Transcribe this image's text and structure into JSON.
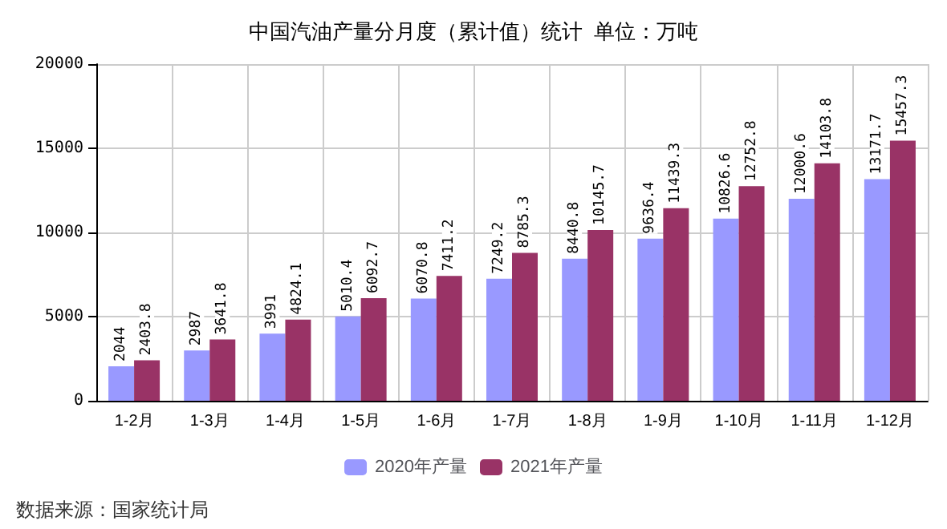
{
  "chart_data": {
    "type": "bar",
    "title": "中国汽油产量分月度（累计值）统计  单位：万吨",
    "categories": [
      "1-2月",
      "1-3月",
      "1-4月",
      "1-5月",
      "1-6月",
      "1-7月",
      "1-8月",
      "1-9月",
      "1-10月",
      "1-11月",
      "1-12月"
    ],
    "series": [
      {
        "name": "2020年产量",
        "color": "#9999ff",
        "values": [
          2044,
          2987,
          3991,
          5010.4,
          6070.8,
          7249.2,
          8440.8,
          9636.4,
          10826.6,
          12000.6,
          13171.7
        ]
      },
      {
        "name": "2021年产量",
        "color": "#993366",
        "values": [
          2403.8,
          3641.8,
          4824.1,
          6092.7,
          7411.2,
          8785.3,
          10145.7,
          11439.3,
          12752.8,
          14103.8,
          15457.3
        ]
      }
    ],
    "ylim": [
      0,
      20000
    ],
    "yticks": [
      0,
      5000,
      10000,
      15000,
      20000
    ],
    "grid": true,
    "legend": "bottom",
    "data_labels": true,
    "annotations": [
      "数据来源：国家统计局"
    ]
  }
}
